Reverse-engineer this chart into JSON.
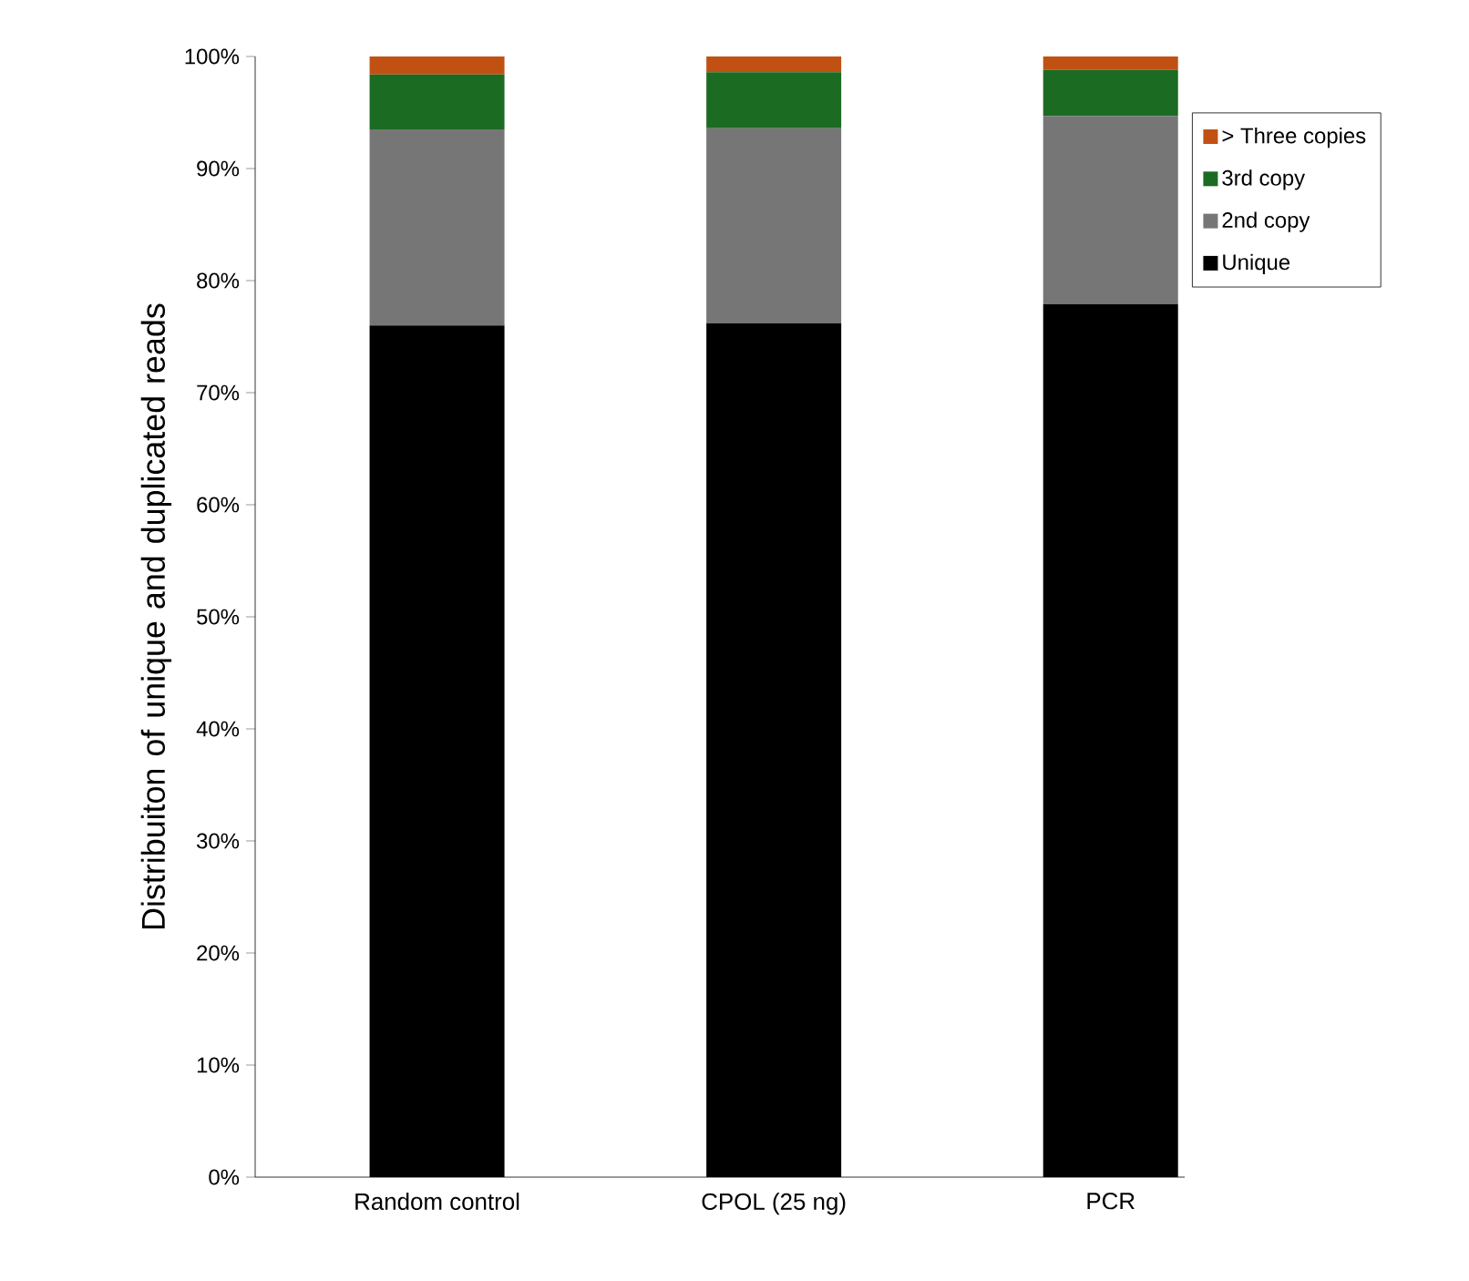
{
  "chart_data": {
    "type": "bar",
    "stacked": true,
    "ylabel": "Distribuiton of unique and duplicated reads",
    "categories": [
      "Random control",
      "CPOL (25 ng)",
      "PCR"
    ],
    "series": [
      {
        "name": "Unique",
        "color": "#000000",
        "values": [
          76.0,
          76.2,
          77.9
        ]
      },
      {
        "name": "2nd copy",
        "color": "#767676",
        "values": [
          17.5,
          17.4,
          16.8
        ]
      },
      {
        "name": "3rd copy",
        "color": "#1b6b23",
        "values": [
          4.9,
          5.0,
          4.1
        ]
      },
      {
        "name": "> Three copies",
        "color": "#c15113",
        "values": [
          1.6,
          1.4,
          1.2
        ]
      }
    ],
    "ylim": [
      0,
      100
    ],
    "yticks": [
      {
        "value": 0,
        "label": "0%"
      },
      {
        "value": 10,
        "label": "10%"
      },
      {
        "value": 20,
        "label": "20%"
      },
      {
        "value": 30,
        "label": "30%"
      },
      {
        "value": 40,
        "label": "40%"
      },
      {
        "value": 50,
        "label": "50%"
      },
      {
        "value": 60,
        "label": "60%"
      },
      {
        "value": 70,
        "label": "70%"
      },
      {
        "value": 80,
        "label": "80%"
      },
      {
        "value": 90,
        "label": "90%"
      },
      {
        "value": 100,
        "label": "100%"
      }
    ],
    "grid": false,
    "legend": "right"
  }
}
